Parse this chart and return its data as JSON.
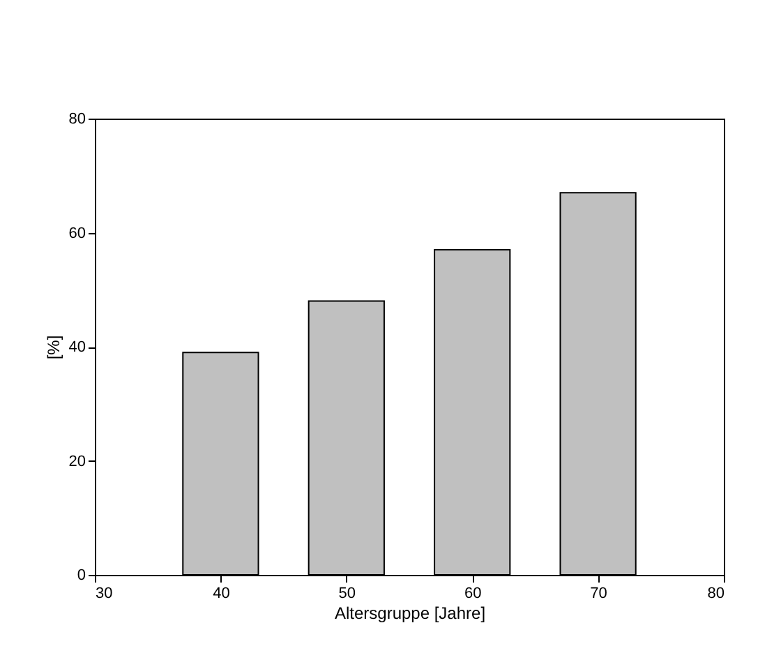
{
  "chart_data": {
    "type": "bar",
    "x": [
      40,
      50,
      60,
      70
    ],
    "values": [
      39,
      48,
      57,
      67
    ],
    "color": "#c0c0c0",
    "xlabel": "Altersgruppe [Jahre]",
    "ylabel": "[%]",
    "xlim": [
      30,
      80
    ],
    "xticks": [
      30,
      40,
      50,
      60,
      70,
      80
    ],
    "ylim": [
      0,
      80
    ],
    "yticks": [
      0,
      20,
      40,
      60,
      80
    ],
    "grid": false
  }
}
